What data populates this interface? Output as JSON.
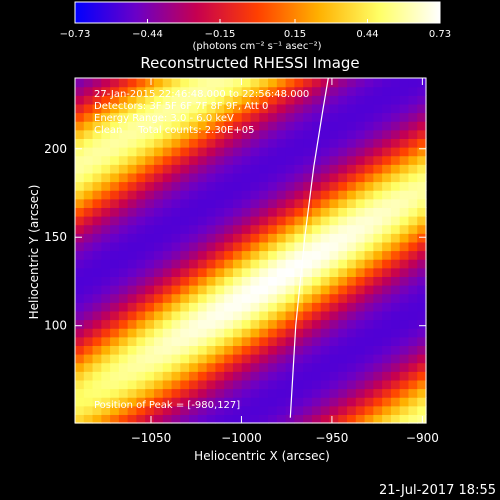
{
  "chart_data": {
    "type": "heatmap",
    "title": "Reconstructed RHESSI Image",
    "xlabel": "Heliocentric X (arcsec)",
    "ylabel": "Heliocentric Y (arcsec)",
    "xlim": [
      -1092,
      -898
    ],
    "ylim": [
      45,
      240
    ],
    "xticks": [
      -1050,
      -1000,
      -950,
      -900
    ],
    "xtick_labels": [
      "−1050",
      "−1000",
      "−950",
      "−900"
    ],
    "yticks": [
      100,
      150,
      200
    ],
    "ytick_labels": [
      "100",
      "150",
      "200"
    ],
    "colorbar": {
      "ticks": [
        -0.73,
        -0.44,
        -0.15,
        0.15,
        0.44,
        0.73
      ],
      "tick_labels": [
        "−0.73",
        "−0.44",
        "−0.15",
        "0.15",
        "0.44",
        "0.73"
      ],
      "units": "(photons cm⁻² s⁻¹ asec⁻²)",
      "colormap": [
        "#0000ff",
        "#6a00c8",
        "#c60050",
        "#ff4000",
        "#ffb000",
        "#ffff66",
        "#ffffff"
      ]
    },
    "annotations": {
      "time_range": "27-Jan-2015 22:46:48.000 to 22:56:48.000",
      "detectors": "Detectors: 3F 5F 6F 7F 8F 9F, Att 0",
      "energy": "Energy Range: 3.0 - 6.0 keV",
      "clean": "Clean     Total counts: 2.30E+05",
      "peak": "Position of Peak = [-980,127]"
    },
    "peak": {
      "x": -980,
      "y": 127,
      "value": 0.73
    },
    "limb_curve": {
      "x": [
        -973,
        -970,
        -965,
        -960,
        -955,
        -952
      ],
      "y": [
        48,
        100,
        150,
        190,
        222,
        240
      ]
    },
    "image": {
      "nx": 40,
      "ny": 40,
      "ridge_slope": 0.62,
      "ridge_offsets": [
        0,
        132,
        -132
      ],
      "ridge_amplitudes": [
        0.73,
        0.58,
        0.55
      ],
      "ridge_width": 24,
      "background": -0.6
    }
  },
  "footer": {
    "date": "21-Jul-2017 18:55"
  }
}
